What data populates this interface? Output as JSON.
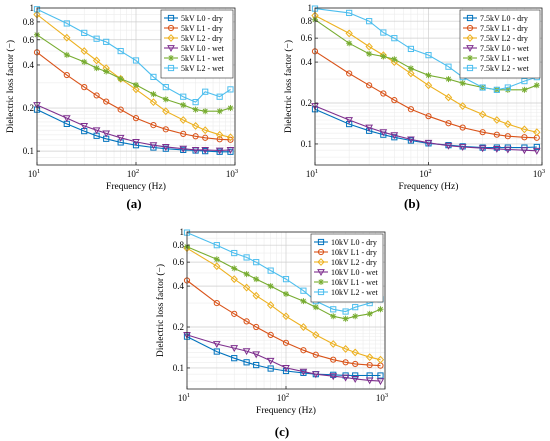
{
  "figure": {
    "panel_labels": [
      "(a)",
      "(b)",
      "(c)"
    ]
  },
  "chart_data": [
    {
      "panel": "(a)",
      "type": "line",
      "xscale": "log",
      "yscale": "log",
      "xlabel": "Frequency (Hz)",
      "ylabel": "Dielectric loss factor (−)",
      "xlim": [
        10,
        1000
      ],
      "ylim": [
        0.08,
        1.0
      ],
      "x_ticks": [
        {
          "v": 10,
          "b": "10",
          "e": "1"
        },
        {
          "v": 100,
          "b": "10",
          "e": "2"
        },
        {
          "v": 1000,
          "b": "10",
          "e": "3"
        }
      ],
      "y_ticks": [
        {
          "v": 0.1,
          "label": "0.1"
        },
        {
          "v": 0.2,
          "label": "0.2"
        },
        {
          "v": 0.4,
          "label": "0.4"
        },
        {
          "v": 0.6,
          "label": "0.6"
        },
        {
          "v": 0.8,
          "label": "0.8"
        },
        {
          "v": 1.0,
          "label": "1"
        }
      ],
      "grid": true,
      "legend_position": "top-right",
      "x": [
        10,
        20,
        30,
        40,
        50,
        70,
        100,
        150,
        200,
        300,
        400,
        500,
        700,
        900
      ],
      "series": [
        {
          "name": "5kV L0 - dry",
          "color": "#0072BD",
          "marker": "square",
          "values": [
            0.195,
            0.155,
            0.138,
            0.128,
            0.122,
            0.115,
            0.11,
            0.106,
            0.104,
            0.102,
            0.101,
            0.1,
            0.099,
            0.099
          ]
        },
        {
          "name": "5kV L1 - dry",
          "color": "#D95319",
          "marker": "circle",
          "values": [
            0.49,
            0.34,
            0.28,
            0.245,
            0.222,
            0.195,
            0.17,
            0.152,
            0.142,
            0.132,
            0.127,
            0.124,
            0.121,
            0.12
          ]
        },
        {
          "name": "5kV L2 - dry",
          "color": "#EDB120",
          "marker": "diamond",
          "values": [
            0.9,
            0.62,
            0.5,
            0.43,
            0.38,
            0.32,
            0.27,
            0.22,
            0.19,
            0.165,
            0.15,
            0.14,
            0.13,
            0.125
          ]
        },
        {
          "name": "5kV L0 - wet",
          "color": "#7E2F8E",
          "marker": "triangle-down",
          "values": [
            0.21,
            0.17,
            0.15,
            0.14,
            0.133,
            0.124,
            0.116,
            0.11,
            0.107,
            0.104,
            0.102,
            0.102,
            0.101,
            0.102
          ]
        },
        {
          "name": "5kV L1 - wet",
          "color": "#77AC30",
          "marker": "asterisk",
          "values": [
            0.65,
            0.47,
            0.42,
            0.38,
            0.36,
            0.32,
            0.29,
            0.25,
            0.23,
            0.21,
            0.195,
            0.19,
            0.19,
            0.2
          ]
        },
        {
          "name": "5kV L2 - wet",
          "color": "#4DBEEE",
          "marker": "square",
          "values": [
            0.98,
            0.78,
            0.67,
            0.61,
            0.58,
            0.5,
            0.43,
            0.33,
            0.28,
            0.24,
            0.22,
            0.26,
            0.24,
            0.27
          ]
        }
      ]
    },
    {
      "panel": "(b)",
      "type": "line",
      "xscale": "log",
      "yscale": "log",
      "xlabel": "Frequency (Hz)",
      "ylabel": "Dielectric loss factor (−)",
      "xlim": [
        10,
        1000
      ],
      "ylim": [
        0.07,
        1.0
      ],
      "x_ticks": [
        {
          "v": 10,
          "b": "10",
          "e": "1"
        },
        {
          "v": 100,
          "b": "10",
          "e": "2"
        },
        {
          "v": 1000,
          "b": "10",
          "e": "3"
        }
      ],
      "y_ticks": [
        {
          "v": 0.1,
          "label": "0.1"
        },
        {
          "v": 0.2,
          "label": "0.2"
        },
        {
          "v": 0.4,
          "label": "0.4"
        },
        {
          "v": 0.6,
          "label": "0.6"
        },
        {
          "v": 0.8,
          "label": "0.8"
        },
        {
          "v": 1.0,
          "label": "1"
        }
      ],
      "grid": true,
      "legend_position": "top-right",
      "x": [
        10,
        20,
        30,
        40,
        50,
        70,
        100,
        150,
        200,
        300,
        400,
        500,
        700,
        900
      ],
      "series": [
        {
          "name": "7.5kV L0 - dry",
          "color": "#0072BD",
          "marker": "square",
          "values": [
            0.18,
            0.14,
            0.125,
            0.117,
            0.112,
            0.106,
            0.101,
            0.098,
            0.096,
            0.094,
            0.094,
            0.094,
            0.094,
            0.095
          ]
        },
        {
          "name": "7.5kV L1 - dry",
          "color": "#D95319",
          "marker": "circle",
          "values": [
            0.48,
            0.33,
            0.27,
            0.235,
            0.21,
            0.18,
            0.16,
            0.142,
            0.132,
            0.122,
            0.117,
            0.114,
            0.112,
            0.111
          ]
        },
        {
          "name": "7.5kV L2 - dry",
          "color": "#EDB120",
          "marker": "diamond",
          "values": [
            0.88,
            0.65,
            0.52,
            0.45,
            0.4,
            0.33,
            0.27,
            0.22,
            0.19,
            0.165,
            0.15,
            0.14,
            0.128,
            0.122
          ]
        },
        {
          "name": "7.5kV L0 - wet",
          "color": "#7E2F8E",
          "marker": "triangle-down",
          "values": [
            0.19,
            0.15,
            0.132,
            0.122,
            0.116,
            0.108,
            0.102,
            0.097,
            0.095,
            0.093,
            0.092,
            0.091,
            0.09,
            0.089
          ]
        },
        {
          "name": "7.5kV L1 - wet",
          "color": "#77AC30",
          "marker": "asterisk",
          "values": [
            0.82,
            0.55,
            0.46,
            0.44,
            0.42,
            0.36,
            0.32,
            0.3,
            0.28,
            0.26,
            0.25,
            0.25,
            0.25,
            0.27
          ]
        },
        {
          "name": "7.5kV L2 - wet",
          "color": "#4DBEEE",
          "marker": "square",
          "values": [
            0.99,
            0.92,
            0.8,
            0.66,
            0.6,
            0.5,
            0.45,
            0.37,
            0.31,
            0.26,
            0.25,
            0.26,
            0.29,
            0.31
          ]
        }
      ]
    },
    {
      "panel": "(c)",
      "type": "line",
      "xscale": "log",
      "yscale": "log",
      "xlabel": "Frequency (Hz)",
      "ylabel": "Dielectric loss factor (−)",
      "xlim": [
        10,
        1000
      ],
      "ylim": [
        0.07,
        1.0
      ],
      "x_ticks": [
        {
          "v": 10,
          "b": "10",
          "e": "1"
        },
        {
          "v": 100,
          "b": "10",
          "e": "2"
        },
        {
          "v": 1000,
          "b": "10",
          "e": "3"
        }
      ],
      "y_ticks": [
        {
          "v": 0.1,
          "label": "0.1"
        },
        {
          "v": 0.2,
          "label": "0.2"
        },
        {
          "v": 0.4,
          "label": "0.4"
        },
        {
          "v": 0.6,
          "label": "0.6"
        },
        {
          "v": 0.8,
          "label": "0.8"
        },
        {
          "v": 1.0,
          "label": "1"
        }
      ],
      "grid": true,
      "legend_position": "top-right",
      "x": [
        10,
        20,
        30,
        40,
        50,
        70,
        100,
        150,
        200,
        300,
        400,
        500,
        700,
        900
      ],
      "series": [
        {
          "name": "10kV L0 - dry",
          "color": "#0072BD",
          "marker": "square",
          "values": [
            0.17,
            0.132,
            0.118,
            0.11,
            0.105,
            0.099,
            0.095,
            0.092,
            0.09,
            0.089,
            0.088,
            0.088,
            0.088,
            0.088
          ]
        },
        {
          "name": "10kV L1 - dry",
          "color": "#D95319",
          "marker": "circle",
          "values": [
            0.44,
            0.3,
            0.25,
            0.22,
            0.2,
            0.175,
            0.153,
            0.135,
            0.125,
            0.115,
            0.11,
            0.107,
            0.105,
            0.104
          ]
        },
        {
          "name": "10kV L2 - dry",
          "color": "#EDB120",
          "marker": "diamond",
          "values": [
            0.76,
            0.56,
            0.45,
            0.39,
            0.34,
            0.29,
            0.24,
            0.2,
            0.175,
            0.15,
            0.138,
            0.13,
            0.12,
            0.115
          ]
        },
        {
          "name": "10kV L0 - wet",
          "color": "#7E2F8E",
          "marker": "triangle-down",
          "values": [
            0.175,
            0.15,
            0.14,
            0.133,
            0.126,
            0.113,
            0.1,
            0.094,
            0.09,
            0.087,
            0.085,
            0.083,
            0.081,
            0.08
          ]
        },
        {
          "name": "10kV L1 - wet",
          "color": "#77AC30",
          "marker": "asterisk",
          "values": [
            0.78,
            0.63,
            0.54,
            0.49,
            0.45,
            0.4,
            0.35,
            0.31,
            0.28,
            0.24,
            0.23,
            0.24,
            0.25,
            0.27
          ]
        },
        {
          "name": "10kV L2 - wet",
          "color": "#4DBEEE",
          "marker": "square",
          "values": [
            0.99,
            0.8,
            0.7,
            0.65,
            0.6,
            0.52,
            0.45,
            0.37,
            0.31,
            0.27,
            0.26,
            0.28,
            0.3,
            0.32
          ]
        }
      ]
    }
  ]
}
